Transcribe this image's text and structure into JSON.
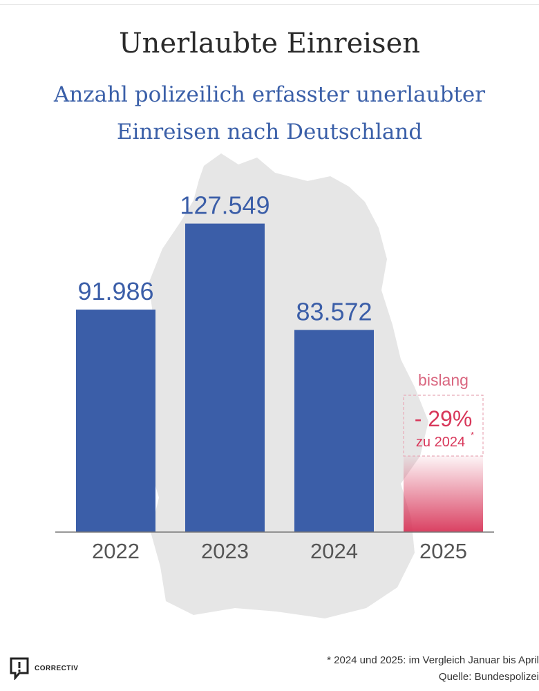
{
  "header": {
    "title": "Unerlaubte Einreisen",
    "subtitle_line1": "Anzahl polizeilich erfasster unerlaubter",
    "subtitle_line2": "Einreisen nach Deutschland"
  },
  "colors": {
    "bar": "#3b5ea8",
    "highlight": "#d8375a",
    "map": "#e6e6e6",
    "axis": "#777777"
  },
  "chart_data": {
    "type": "bar",
    "categories": [
      "2022",
      "2023",
      "2024",
      "2025"
    ],
    "values": [
      91986,
      127549,
      83572,
      null
    ],
    "value_labels": [
      "91.986",
      "127.549",
      "83.572",
      ""
    ],
    "ylim": [
      0,
      140000
    ],
    "title": "Unerlaubte Einreisen",
    "xlabel": "",
    "ylabel": "",
    "annotation_2025": {
      "label_top": "bislang",
      "change_text": "- 29%",
      "compare_text": "zu 2024",
      "footnote_mark": "*"
    },
    "grid": false
  },
  "footer": {
    "note": "* 2024 und 2025: im Vergleich Januar bis April",
    "source": "Quelle: Bundespolizei"
  },
  "logo": {
    "text": "CORRECTIV",
    "icon": "correctiv-logo-icon"
  }
}
